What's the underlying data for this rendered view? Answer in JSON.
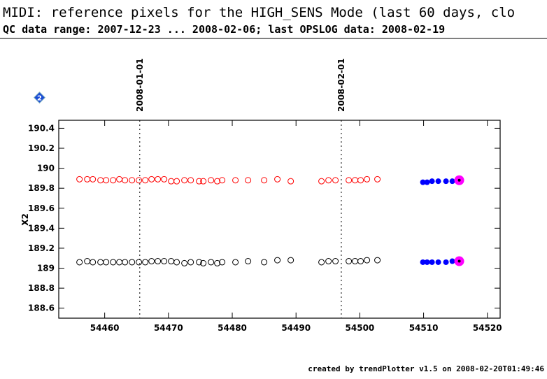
{
  "chart_data": {
    "type": "scatter",
    "title": "MIDI: reference pixels for the HIGH_SENS Mode (last 60 days, clo",
    "subtitle": "QC data range: 2007-12-23 ... 2008-02-06; last OPSLOG data: 2008-02-19",
    "y_label": "X2",
    "footer": "created by trendPlotter v1.5 on 2008-02-20T01:49:46",
    "annotation": "2",
    "xlim": [
      54452.8,
      54522
    ],
    "ylim": [
      188.5,
      190.48
    ],
    "xticks": [
      54460,
      54470,
      54480,
      54490,
      54500,
      54510,
      54520
    ],
    "yticks": [
      188.6,
      188.8,
      189,
      189.2,
      189.4,
      189.6,
      189.8,
      190,
      190.2,
      190.4
    ],
    "vlines": [
      {
        "value": 54465.5,
        "label": "2008-01-01"
      },
      {
        "value": 54497.1,
        "label": "2008-02-01"
      }
    ],
    "series": [
      {
        "color": "#ff0000",
        "marker": "open",
        "x": [
          54456.05,
          54457.26,
          54458.14,
          54459.34,
          54460.22,
          54461.32,
          54462.3,
          54463.18,
          54464.28,
          54465.37,
          54466.36,
          54467.35,
          54468.33,
          54469.32,
          54470.42,
          54471.29,
          54472.5,
          54473.49,
          54474.8,
          54475.46,
          54476.67,
          54477.65,
          54478.42,
          54480.5,
          54482.48,
          54485,
          54487.08,
          54489.17,
          54493.99,
          54495.09,
          54496.18,
          54498.27,
          54499.25,
          54500.13,
          54501.12,
          54502.76
        ],
        "values": [
          189.89,
          189.89,
          189.89,
          189.88,
          189.88,
          189.88,
          189.89,
          189.88,
          189.88,
          189.88,
          189.88,
          189.89,
          189.89,
          189.89,
          189.87,
          189.87,
          189.88,
          189.88,
          189.87,
          189.87,
          189.88,
          189.87,
          189.88,
          189.88,
          189.88,
          189.88,
          189.89,
          189.87,
          189.87,
          189.88,
          189.88,
          189.88,
          189.88,
          189.88,
          189.89,
          189.89
        ]
      },
      {
        "color": "#000000",
        "marker": "open",
        "x": [
          54456.05,
          54457.26,
          54458.14,
          54459.34,
          54460.22,
          54461.32,
          54462.3,
          54463.18,
          54464.28,
          54465.37,
          54466.36,
          54467.35,
          54468.33,
          54469.32,
          54470.42,
          54471.29,
          54472.5,
          54473.49,
          54474.8,
          54475.46,
          54476.67,
          54477.65,
          54478.42,
          54480.5,
          54482.48,
          54485,
          54487.08,
          54489.17,
          54493.99,
          54495.09,
          54496.18,
          54498.27,
          54499.25,
          54500.13,
          54501.12,
          54502.76
        ],
        "values": [
          189.06,
          189.07,
          189.06,
          189.06,
          189.06,
          189.06,
          189.06,
          189.06,
          189.06,
          189.06,
          189.06,
          189.07,
          189.07,
          189.07,
          189.07,
          189.06,
          189.05,
          189.06,
          189.06,
          189.05,
          189.06,
          189.05,
          189.06,
          189.06,
          189.07,
          189.06,
          189.08,
          189.08,
          189.06,
          189.07,
          189.07,
          189.07,
          189.07,
          189.07,
          189.08,
          189.08
        ]
      },
      {
        "color": "#0000ff",
        "marker": "filled",
        "x": [
          54509.89,
          54510.55,
          54511.32,
          54512.3,
          54513.51,
          54514.5
        ],
        "values": [
          189.86,
          189.86,
          189.87,
          189.87,
          189.87,
          189.87
        ]
      },
      {
        "color": "#0000ff",
        "marker": "filled",
        "x": [
          54509.89,
          54510.55,
          54511.32,
          54512.3,
          54513.51,
          54514.5
        ],
        "values": [
          189.06,
          189.06,
          189.06,
          189.06,
          189.06,
          189.07
        ]
      },
      {
        "color": "#ff00ff",
        "marker": "highlight",
        "x": [
          54515.59,
          54515.59
        ],
        "values": [
          189.88,
          189.07
        ]
      }
    ]
  }
}
